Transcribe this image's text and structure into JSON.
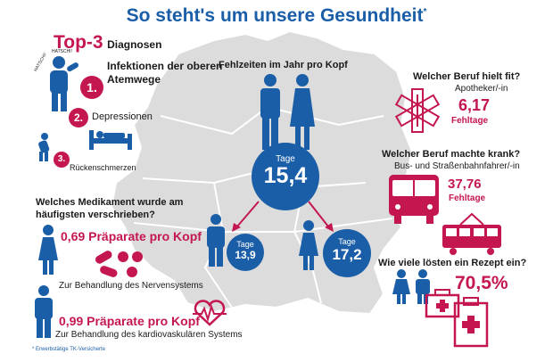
{
  "title": "So steht's um unsere Gesundheit",
  "title_marker": "*",
  "top3": {
    "heading_highlight": "Top-3",
    "heading_rest": "Diagnosen",
    "items": [
      {
        "number": "1.",
        "label": "Infektionen der oberen Atemwege"
      },
      {
        "number": "2.",
        "label": "Depressionen"
      },
      {
        "number": "3.",
        "label": "Rückenschmerzen"
      }
    ],
    "sneeze_text": "HATSCHI!"
  },
  "absence": {
    "heading": "Fehlzeiten im Jahr pro Kopf",
    "overall_label": "Tage",
    "overall_value": "15,4",
    "male_label": "Tage",
    "male_value": "13,9",
    "female_label": "Tage",
    "female_value": "17,2"
  },
  "medication": {
    "heading": "Welches Medikament wurde am häufigsten verschrieben?",
    "female_value": "0,69 Präparate pro Kopf",
    "female_note": "Zur Behandlung des Nervensystems",
    "male_value": "0,99 Präparate pro Kopf",
    "male_note": "Zur Behandlung des kardiovaskulären Systems"
  },
  "fit_job": {
    "question": "Welcher Beruf hielt fit?",
    "job": "Apotheker/-in",
    "value": "6,17",
    "unit": "Fehltage"
  },
  "sick_job": {
    "question": "Welcher Beruf machte krank?",
    "job": "Bus- und Straßenbahnfahrer/-in",
    "value": "37,76",
    "unit": "Fehltage"
  },
  "prescription": {
    "question": "Wie viele lösten ein Rezept ein?",
    "value": "70,5%"
  },
  "footnote": "* Erwerbstätige TK-Versicherte",
  "colors": {
    "blue": "#1b5ea8",
    "magenta": "#c4174f",
    "map": "#dcdcdc",
    "map_border": "#ffffff"
  }
}
